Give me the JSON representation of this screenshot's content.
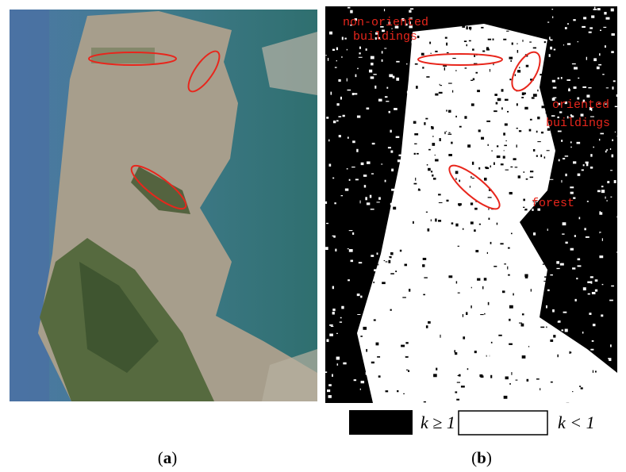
{
  "panels": [
    {
      "caption": [
        "(",
        "a",
        ")"
      ]
    },
    {
      "caption": [
        "(",
        "b",
        ")"
      ],
      "annotations": [
        {
          "lines": [
            "non-oriented",
            "buildings"
          ]
        },
        {
          "lines": [
            "oriented",
            "buildings"
          ]
        },
        {
          "lines": [
            "forest"
          ]
        }
      ],
      "legend": [
        "k ≥ 1",
        "k < 1"
      ]
    }
  ]
}
